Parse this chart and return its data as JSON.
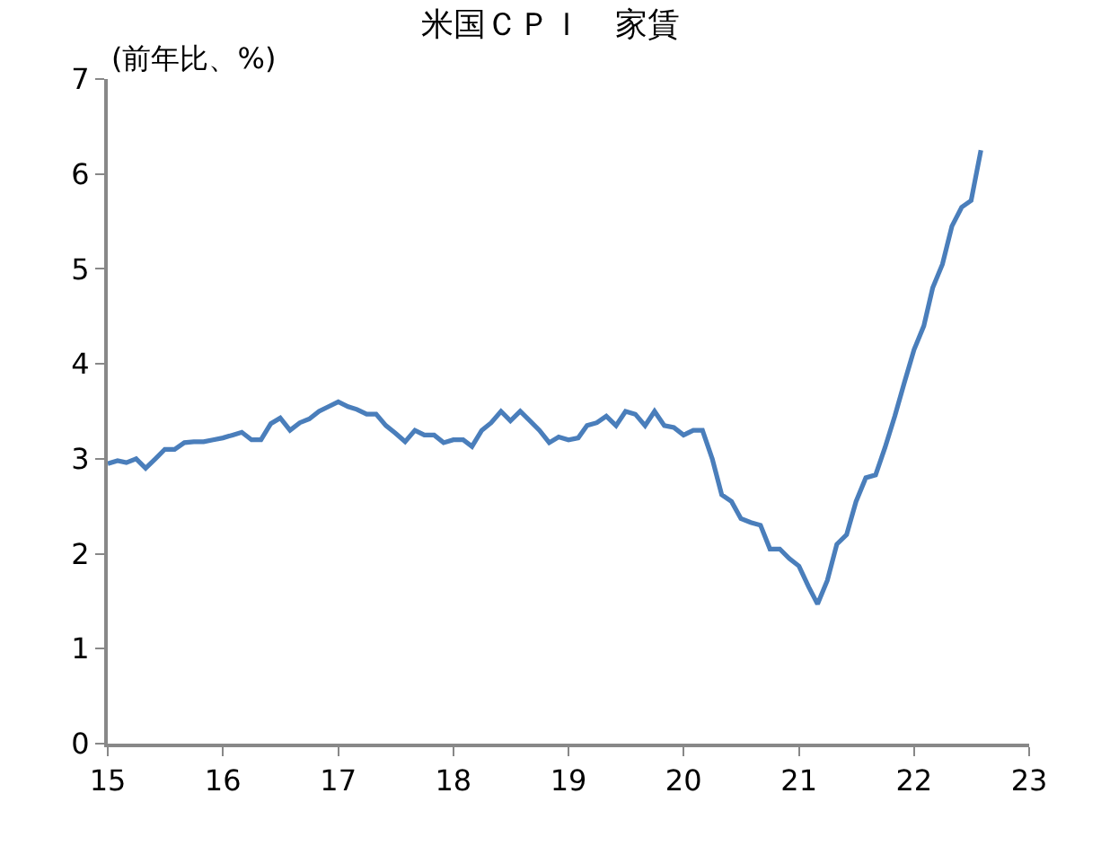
{
  "chart_data": {
    "type": "line",
    "title": "米国ＣＰＩ　家賃",
    "ylabel": "(前年比、%)",
    "x": [
      "2015-01",
      "2015-02",
      "2015-03",
      "2015-04",
      "2015-05",
      "2015-06",
      "2015-07",
      "2015-08",
      "2015-09",
      "2015-10",
      "2015-11",
      "2015-12",
      "2016-01",
      "2016-02",
      "2016-03",
      "2016-04",
      "2016-05",
      "2016-06",
      "2016-07",
      "2016-08",
      "2016-09",
      "2016-10",
      "2016-11",
      "2016-12",
      "2017-01",
      "2017-02",
      "2017-03",
      "2017-04",
      "2017-05",
      "2017-06",
      "2017-07",
      "2017-08",
      "2017-09",
      "2017-10",
      "2017-11",
      "2017-12",
      "2018-01",
      "2018-02",
      "2018-03",
      "2018-04",
      "2018-05",
      "2018-06",
      "2018-07",
      "2018-08",
      "2018-09",
      "2018-10",
      "2018-11",
      "2018-12",
      "2019-01",
      "2019-02",
      "2019-03",
      "2019-04",
      "2019-05",
      "2019-06",
      "2019-07",
      "2019-08",
      "2019-09",
      "2019-10",
      "2019-11",
      "2019-12",
      "2020-01",
      "2020-02",
      "2020-03",
      "2020-04",
      "2020-05",
      "2020-06",
      "2020-07",
      "2020-08",
      "2020-09",
      "2020-10",
      "2020-11",
      "2020-12",
      "2021-01",
      "2021-02",
      "2021-03",
      "2021-04",
      "2021-05",
      "2021-06",
      "2021-07",
      "2021-08",
      "2021-09",
      "2021-10",
      "2021-11",
      "2021-12",
      "2022-01",
      "2022-02",
      "2022-03",
      "2022-04",
      "2022-05",
      "2022-06",
      "2022-07",
      "2022-08"
    ],
    "series": [
      {
        "color": "#4a7ebb",
        "values": [
          2.95,
          2.98,
          2.96,
          3.0,
          2.9,
          3.0,
          3.1,
          3.1,
          3.17,
          3.18,
          3.18,
          3.2,
          3.22,
          3.25,
          3.28,
          3.2,
          3.2,
          3.37,
          3.43,
          3.3,
          3.38,
          3.42,
          3.5,
          3.55,
          3.6,
          3.55,
          3.52,
          3.47,
          3.47,
          3.35,
          3.27,
          3.18,
          3.3,
          3.25,
          3.25,
          3.17,
          3.2,
          3.2,
          3.13,
          3.3,
          3.38,
          3.5,
          3.4,
          3.5,
          3.4,
          3.3,
          3.17,
          3.23,
          3.2,
          3.22,
          3.35,
          3.38,
          3.45,
          3.35,
          3.5,
          3.47,
          3.35,
          3.5,
          3.35,
          3.33,
          3.25,
          3.3,
          3.3,
          3.0,
          2.62,
          2.55,
          2.37,
          2.33,
          2.3,
          2.05,
          2.05,
          1.95,
          1.87,
          1.65,
          1.47,
          1.72,
          2.1,
          2.2,
          2.55,
          2.8,
          2.83,
          3.12,
          3.45,
          3.8,
          4.15,
          4.4,
          4.8,
          5.05,
          5.45,
          5.65,
          5.72,
          6.25
        ]
      }
    ],
    "xlim": [
      "2015-01",
      "2023-01"
    ],
    "xticks": [
      {
        "value": "2015-01",
        "label": "15"
      },
      {
        "value": "2016-01",
        "label": "16"
      },
      {
        "value": "2017-01",
        "label": "17"
      },
      {
        "value": "2018-01",
        "label": "18"
      },
      {
        "value": "2019-01",
        "label": "19"
      },
      {
        "value": "2020-01",
        "label": "20"
      },
      {
        "value": "2021-01",
        "label": "21"
      },
      {
        "value": "2022-01",
        "label": "22"
      },
      {
        "value": "2023-01",
        "label": "23"
      }
    ],
    "ylim": [
      0,
      7
    ],
    "yticks": [
      0,
      1,
      2,
      3,
      4,
      5,
      6,
      7
    ],
    "marker": "none",
    "line_style": "solid"
  }
}
